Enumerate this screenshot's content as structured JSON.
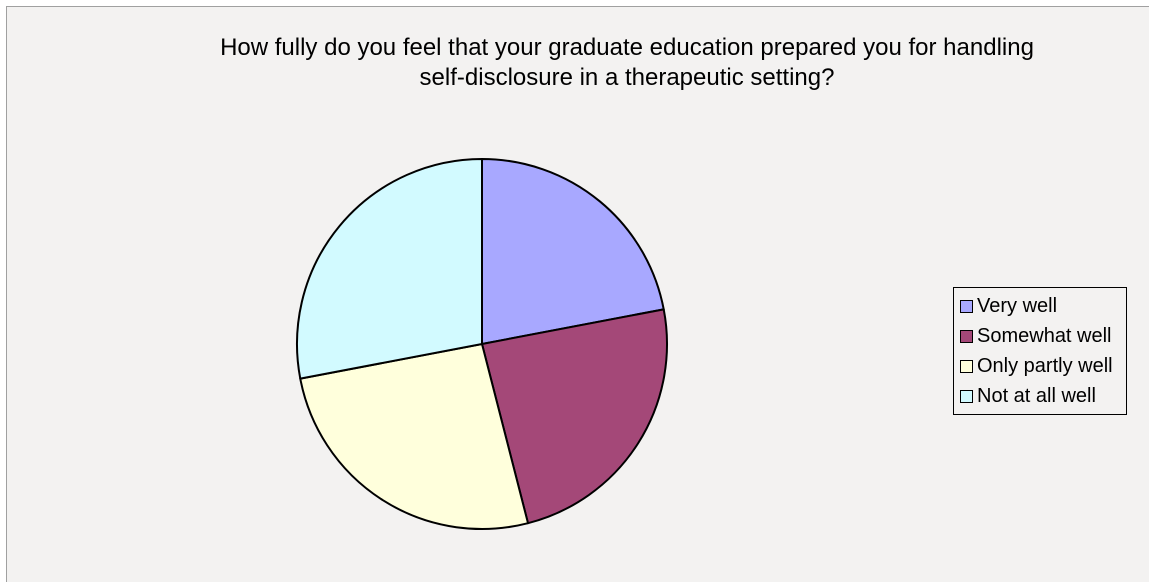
{
  "chart_data": {
    "type": "pie",
    "title": "How fully do you feel that your graduate education prepared you for handling\nself-disclosure in a therapeutic setting?",
    "categories": [
      "Very well",
      "Somewhat well",
      "Only partly well",
      "Not at all well"
    ],
    "values": [
      22,
      24,
      26,
      28
    ],
    "colors": [
      "#a8a8ff",
      "#a44878",
      "#ffffdc",
      "#d2faff"
    ],
    "legend": "right"
  }
}
